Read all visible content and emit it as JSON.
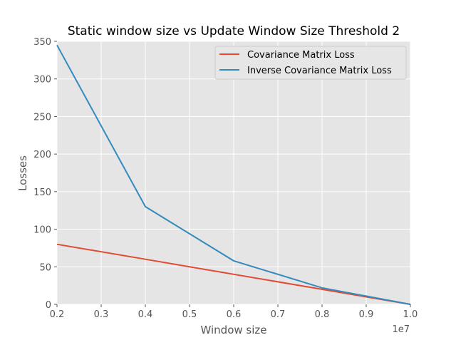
{
  "chart_data": {
    "type": "line",
    "title": "Static window size vs Update Window Size Threshold 2",
    "xlabel": "Window size",
    "ylabel": "Losses",
    "x_offset_label": "1e7",
    "xlim": [
      0.2,
      1.0
    ],
    "ylim": [
      0,
      350
    ],
    "xticks": [
      "0.2",
      "0.3",
      "0.4",
      "0.5",
      "0.6",
      "0.7",
      "0.8",
      "0.9",
      "1.0"
    ],
    "yticks": [
      "0",
      "50",
      "100",
      "150",
      "200",
      "250",
      "300",
      "350"
    ],
    "grid": true,
    "legend_position": "top-right",
    "background_color": "#e5e5e5",
    "grid_color": "#ffffff",
    "x": [
      0.2,
      0.4,
      0.6,
      0.8,
      1.0
    ],
    "series": [
      {
        "name": "Covariance Matrix Loss",
        "color": "#e24a33",
        "values": [
          80,
          60,
          40,
          20,
          0
        ]
      },
      {
        "name": "Inverse Covariance Matrix Loss",
        "color": "#348abd",
        "values": [
          345,
          130,
          58,
          22,
          0
        ]
      }
    ]
  }
}
